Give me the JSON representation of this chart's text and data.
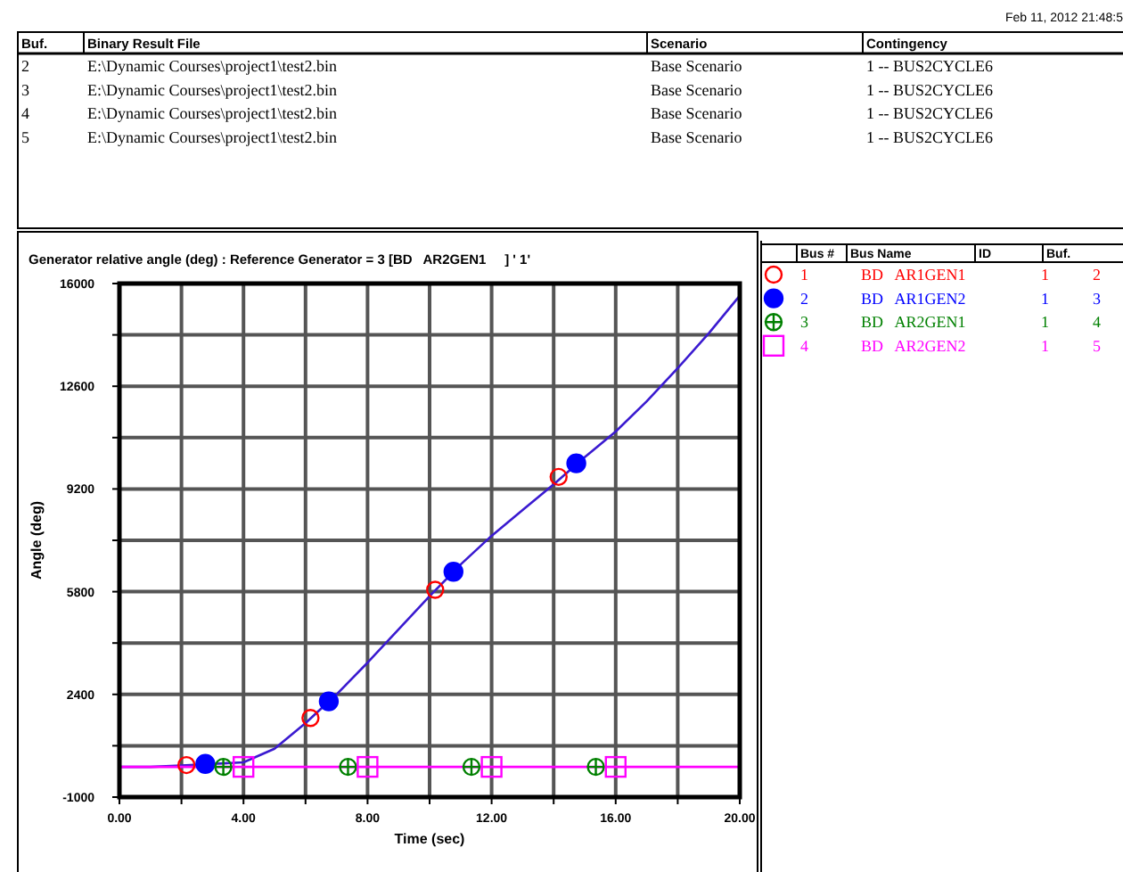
{
  "chart_data": {
    "type": "line",
    "title": "Generator relative angle (deg) : Reference Generator = 3 [BD   AR2GEN1     ] ' 1'",
    "xlabel": "Time (sec)",
    "ylabel": "Angle (deg)",
    "x": [
      0,
      1,
      2,
      3,
      4,
      5,
      6,
      7,
      8,
      9,
      10,
      11,
      12,
      13,
      14,
      15,
      16,
      17,
      18,
      19,
      20
    ],
    "series": [
      {
        "color": "#3a1ad0",
        "values": [
          0,
          0,
          50,
          100,
          150,
          600,
          1450,
          2400,
          3450,
          4550,
          5650,
          6700,
          7650,
          8500,
          9350,
          10250,
          11100,
          12100,
          13200,
          14350,
          15600
        ]
      },
      {
        "color": "#ff00ff",
        "values": [
          0,
          0,
          0,
          0,
          0,
          0,
          0,
          0,
          0,
          0,
          0,
          0,
          0,
          0,
          0,
          0,
          0,
          0,
          0,
          0,
          0
        ]
      },
      {
        "type": "scatter",
        "name": "BD   AR1GEN1",
        "color": "#ff0000",
        "marker": "circle",
        "x": [
          2.16,
          6.16,
          10.18,
          14.16
        ],
        "values": [
          60,
          1620,
          5860,
          9600
        ]
      },
      {
        "type": "scatter",
        "name": "BD   AR1GEN2",
        "color": "#0000ff",
        "marker": "circle",
        "x": [
          2.77,
          6.75,
          10.77,
          14.73
        ],
        "values": [
          100,
          2170,
          6460,
          10050
        ]
      },
      {
        "type": "scatter",
        "name": "BD   AR2GEN1",
        "color": "#008000",
        "marker": "cross",
        "x": [
          3.35,
          7.37,
          11.35,
          15.36
        ],
        "values": [
          0,
          0,
          0,
          0
        ]
      },
      {
        "type": "scatter",
        "name": "BD   AR2GEN2",
        "color": "#ff00ff",
        "marker": "square",
        "x": [
          4,
          8,
          12,
          16
        ],
        "values": [
          0,
          0,
          0,
          0
        ]
      }
    ],
    "xlim": [
      0,
      20
    ],
    "ylim": [
      -1000,
      16000
    ],
    "xticks": [
      {
        "value": 0,
        "label": "0.00"
      },
      {
        "value": 2,
        "label": null
      },
      {
        "value": 4,
        "label": "4.00"
      },
      {
        "value": 6,
        "label": null
      },
      {
        "value": 8,
        "label": "8.00"
      },
      {
        "value": 10,
        "label": null
      },
      {
        "value": 12,
        "label": "12.00"
      },
      {
        "value": 14,
        "label": null
      },
      {
        "value": 16,
        "label": "16.00"
      },
      {
        "value": 18,
        "label": null
      },
      {
        "value": 20,
        "label": "20.00"
      }
    ],
    "yticks": [
      -1000,
      {
        "value": 700,
        "label": null
      },
      2400,
      {
        "value": 4100,
        "label": null
      },
      5800,
      {
        "value": 7500,
        "label": null
      },
      9200,
      {
        "value": 10900,
        "label": null
      },
      12600,
      {
        "value": 14300,
        "label": null
      },
      16000
    ],
    "grid": true,
    "legend": "right",
    "line_style": "solid",
    "annotations": [
      "Feb 11, 2012 21:48:5",
      "Buf.",
      "Binary Result File",
      "Scenario",
      "Contingency",
      "2",
      "E:\\Dynamic Courses\\project1\\test2.bin",
      "Base Scenario",
      "1 -- BUS2CYCLE6",
      "3",
      "E:\\Dynamic Courses\\project1\\test2.bin",
      "Base Scenario",
      "1 -- BUS2CYCLE6",
      "4",
      "E:\\Dynamic Courses\\project1\\test2.bin",
      "Base Scenario",
      "1 -- BUS2CYCLE6",
      "5",
      "E:\\Dynamic Courses\\project1\\test2.bin",
      "Base Scenario",
      "1 -- BUS2CYCLE6",
      "Bus #",
      "Bus Name",
      "ID",
      "Buf.",
      "1",
      "1",
      "2",
      "2",
      "1",
      "3",
      "3",
      "1",
      "4",
      "4",
      "1",
      "5"
    ]
  }
}
